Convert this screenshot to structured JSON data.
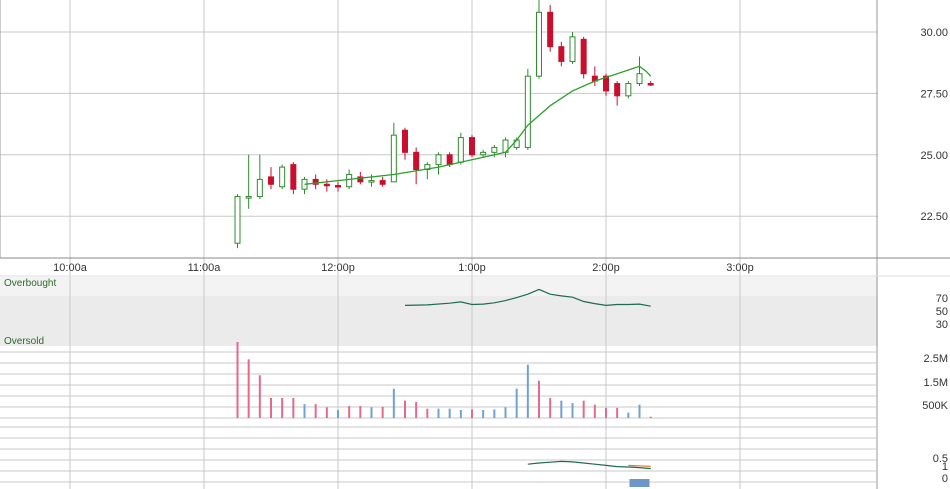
{
  "colors": {
    "up_candle": "#2e8b2e",
    "down_candle": "#c8102e",
    "ma_line": "#2ca02c",
    "rsi_line": "#1f6b4f",
    "vol_up": "#6fa0d8",
    "vol_down": "#e36a8a",
    "band_fill": "#ebebeb",
    "grid": "#c8c8c8",
    "slow_line": "#d9822b",
    "macd_hist": "#6f96c9"
  },
  "chart_data": [
    {
      "type": "candlestick",
      "x_ticks": [
        {
          "label": "10:00a",
          "t": 600
        },
        {
          "label": "11:00a",
          "t": 660
        },
        {
          "label": "12:00p",
          "t": 720
        },
        {
          "label": "1:00p",
          "t": 780
        },
        {
          "label": "2:00p",
          "t": 840
        },
        {
          "label": "3:00p",
          "t": 900
        }
      ],
      "y_ticks": [
        "30.00",
        "27.50",
        "25.00",
        "22.50"
      ],
      "ylim": [
        20.8,
        31.3
      ],
      "interval_minutes": 5,
      "candles": [
        {
          "t": 675,
          "o": 21.4,
          "h": 23.4,
          "l": 21.2,
          "c": 23.3
        },
        {
          "t": 680,
          "o": 23.3,
          "h": 25.0,
          "l": 22.8,
          "c": 23.3
        },
        {
          "t": 685,
          "o": 23.3,
          "h": 25.0,
          "l": 23.2,
          "c": 24.0
        },
        {
          "t": 690,
          "o": 24.1,
          "h": 24.5,
          "l": 23.6,
          "c": 23.8
        },
        {
          "t": 695,
          "o": 23.7,
          "h": 24.6,
          "l": 23.6,
          "c": 24.5
        },
        {
          "t": 700,
          "o": 24.6,
          "h": 24.7,
          "l": 23.4,
          "c": 23.6
        },
        {
          "t": 705,
          "o": 23.6,
          "h": 24.1,
          "l": 23.4,
          "c": 24.0
        },
        {
          "t": 710,
          "o": 24.0,
          "h": 24.2,
          "l": 23.6,
          "c": 23.8
        },
        {
          "t": 715,
          "o": 23.8,
          "h": 24.0,
          "l": 23.5,
          "c": 23.75
        },
        {
          "t": 720,
          "o": 23.75,
          "h": 23.9,
          "l": 23.5,
          "c": 23.7
        },
        {
          "t": 725,
          "o": 23.7,
          "h": 24.4,
          "l": 23.6,
          "c": 24.2
        },
        {
          "t": 730,
          "o": 24.1,
          "h": 24.3,
          "l": 23.8,
          "c": 23.9
        },
        {
          "t": 735,
          "o": 23.9,
          "h": 24.2,
          "l": 23.7,
          "c": 23.95
        },
        {
          "t": 740,
          "o": 23.95,
          "h": 24.1,
          "l": 23.7,
          "c": 23.8
        },
        {
          "t": 745,
          "o": 23.9,
          "h": 26.3,
          "l": 23.9,
          "c": 25.8
        },
        {
          "t": 750,
          "o": 26.0,
          "h": 26.1,
          "l": 24.8,
          "c": 25.1
        },
        {
          "t": 755,
          "o": 25.1,
          "h": 25.3,
          "l": 23.8,
          "c": 24.4
        },
        {
          "t": 760,
          "o": 24.4,
          "h": 24.7,
          "l": 24.0,
          "c": 24.6
        },
        {
          "t": 765,
          "o": 24.6,
          "h": 25.1,
          "l": 24.2,
          "c": 25.0
        },
        {
          "t": 770,
          "o": 25.0,
          "h": 25.1,
          "l": 24.5,
          "c": 24.6
        },
        {
          "t": 775,
          "o": 24.7,
          "h": 25.9,
          "l": 24.6,
          "c": 25.7
        },
        {
          "t": 780,
          "o": 25.7,
          "h": 25.8,
          "l": 24.9,
          "c": 25.0
        },
        {
          "t": 785,
          "o": 25.0,
          "h": 25.2,
          "l": 24.9,
          "c": 25.1
        },
        {
          "t": 790,
          "o": 25.1,
          "h": 25.4,
          "l": 24.9,
          "c": 25.3
        },
        {
          "t": 795,
          "o": 25.1,
          "h": 25.7,
          "l": 24.9,
          "c": 25.6
        },
        {
          "t": 800,
          "o": 25.3,
          "h": 25.7,
          "l": 25.2,
          "c": 25.6
        },
        {
          "t": 805,
          "o": 25.3,
          "h": 28.5,
          "l": 25.2,
          "c": 28.2
        },
        {
          "t": 810,
          "o": 28.2,
          "h": 31.3,
          "l": 28.1,
          "c": 30.8
        },
        {
          "t": 815,
          "o": 30.8,
          "h": 31.1,
          "l": 29.2,
          "c": 29.4
        },
        {
          "t": 820,
          "o": 29.4,
          "h": 29.6,
          "l": 28.6,
          "c": 28.8
        },
        {
          "t": 825,
          "o": 28.8,
          "h": 30.0,
          "l": 28.7,
          "c": 29.8
        },
        {
          "t": 830,
          "o": 29.7,
          "h": 29.8,
          "l": 28.1,
          "c": 28.3
        },
        {
          "t": 835,
          "o": 28.2,
          "h": 28.6,
          "l": 27.8,
          "c": 28.0
        },
        {
          "t": 840,
          "o": 28.2,
          "h": 28.3,
          "l": 27.4,
          "c": 27.6
        },
        {
          "t": 845,
          "o": 27.9,
          "h": 28.0,
          "l": 27.0,
          "c": 27.4
        },
        {
          "t": 850,
          "o": 27.4,
          "h": 28.0,
          "l": 27.3,
          "c": 27.9
        },
        {
          "t": 855,
          "o": 27.9,
          "h": 29.0,
          "l": 27.8,
          "c": 28.3
        },
        {
          "t": 860,
          "o": 27.9,
          "h": 28.0,
          "l": 27.8,
          "c": 27.85
        }
      ],
      "moving_average": [
        [
          705,
          23.8
        ],
        [
          725,
          24.0
        ],
        [
          745,
          24.2
        ],
        [
          765,
          24.5
        ],
        [
          785,
          24.9
        ],
        [
          795,
          25.1
        ],
        [
          800,
          25.6
        ],
        [
          805,
          26.2
        ],
        [
          815,
          27.0
        ],
        [
          825,
          27.6
        ],
        [
          835,
          28.0
        ],
        [
          845,
          28.3
        ],
        [
          855,
          28.6
        ],
        [
          858,
          28.4
        ],
        [
          860,
          28.2
        ]
      ]
    },
    {
      "type": "line",
      "label": "Overbought",
      "y_ticks": [
        "70",
        "50",
        "30"
      ],
      "ylim": [
        0,
        100
      ],
      "band": [
        70,
        30
      ],
      "values": [
        [
          750,
          48
        ],
        [
          760,
          49
        ],
        [
          770,
          53
        ],
        [
          775,
          56
        ],
        [
          780,
          50
        ],
        [
          785,
          51
        ],
        [
          790,
          54
        ],
        [
          795,
          59
        ],
        [
          800,
          66
        ],
        [
          805,
          74
        ],
        [
          810,
          85
        ],
        [
          815,
          74
        ],
        [
          820,
          70
        ],
        [
          825,
          67
        ],
        [
          830,
          57
        ],
        [
          835,
          52
        ],
        [
          840,
          48
        ],
        [
          845,
          50
        ],
        [
          850,
          50
        ],
        [
          855,
          51
        ],
        [
          860,
          46
        ]
      ]
    },
    {
      "type": "bar",
      "label": "Oversold",
      "y_ticks": [
        "2.5M",
        "1.5M",
        "500K"
      ],
      "ylim": [
        0,
        3000000
      ],
      "bars": [
        {
          "t": 675,
          "v": 2850000,
          "up": false
        },
        {
          "t": 680,
          "v": 2200000,
          "up": false
        },
        {
          "t": 685,
          "v": 1600000,
          "up": false
        },
        {
          "t": 690,
          "v": 750000,
          "up": false
        },
        {
          "t": 695,
          "v": 750000,
          "up": false
        },
        {
          "t": 700,
          "v": 750000,
          "up": false
        },
        {
          "t": 705,
          "v": 520000,
          "up": true
        },
        {
          "t": 710,
          "v": 520000,
          "up": false
        },
        {
          "t": 715,
          "v": 400000,
          "up": false
        },
        {
          "t": 720,
          "v": 300000,
          "up": true
        },
        {
          "t": 725,
          "v": 450000,
          "up": false
        },
        {
          "t": 730,
          "v": 450000,
          "up": false
        },
        {
          "t": 735,
          "v": 400000,
          "up": true
        },
        {
          "t": 740,
          "v": 420000,
          "up": false
        },
        {
          "t": 745,
          "v": 1100000,
          "up": true
        },
        {
          "t": 750,
          "v": 650000,
          "up": false
        },
        {
          "t": 755,
          "v": 600000,
          "up": false
        },
        {
          "t": 760,
          "v": 350000,
          "up": false
        },
        {
          "t": 765,
          "v": 350000,
          "up": true
        },
        {
          "t": 770,
          "v": 350000,
          "up": true
        },
        {
          "t": 775,
          "v": 300000,
          "up": true
        },
        {
          "t": 780,
          "v": 320000,
          "up": false
        },
        {
          "t": 785,
          "v": 300000,
          "up": true
        },
        {
          "t": 790,
          "v": 320000,
          "up": true
        },
        {
          "t": 795,
          "v": 400000,
          "up": true
        },
        {
          "t": 800,
          "v": 1100000,
          "up": true
        },
        {
          "t": 805,
          "v": 2000000,
          "up": true
        },
        {
          "t": 810,
          "v": 1400000,
          "up": false
        },
        {
          "t": 815,
          "v": 750000,
          "up": false
        },
        {
          "t": 820,
          "v": 650000,
          "up": true
        },
        {
          "t": 825,
          "v": 560000,
          "up": true
        },
        {
          "t": 830,
          "v": 650000,
          "up": false
        },
        {
          "t": 835,
          "v": 500000,
          "up": false
        },
        {
          "t": 840,
          "v": 380000,
          "up": false
        },
        {
          "t": 845,
          "v": 380000,
          "up": false
        },
        {
          "t": 850,
          "v": 200000,
          "up": true
        },
        {
          "t": 855,
          "v": 500000,
          "up": true
        },
        {
          "t": 860,
          "v": 50000,
          "up": false
        }
      ]
    },
    {
      "type": "line",
      "y_ticks": [
        "1",
        "0.5",
        "0"
      ],
      "ylim": [
        0,
        1.5
      ],
      "line": [
        [
          805,
          1.15
        ],
        [
          810,
          1.25
        ],
        [
          815,
          1.32
        ],
        [
          820,
          1.38
        ],
        [
          825,
          1.34
        ],
        [
          830,
          1.25
        ],
        [
          835,
          1.15
        ],
        [
          840,
          1.05
        ],
        [
          845,
          0.95
        ],
        [
          850,
          0.92
        ],
        [
          855,
          0.87
        ],
        [
          860,
          0.78
        ]
      ],
      "slow_line": [
        [
          850,
          1.05
        ],
        [
          860,
          0.97
        ]
      ],
      "hist": [
        [
          855,
          -0.15
        ]
      ]
    }
  ]
}
